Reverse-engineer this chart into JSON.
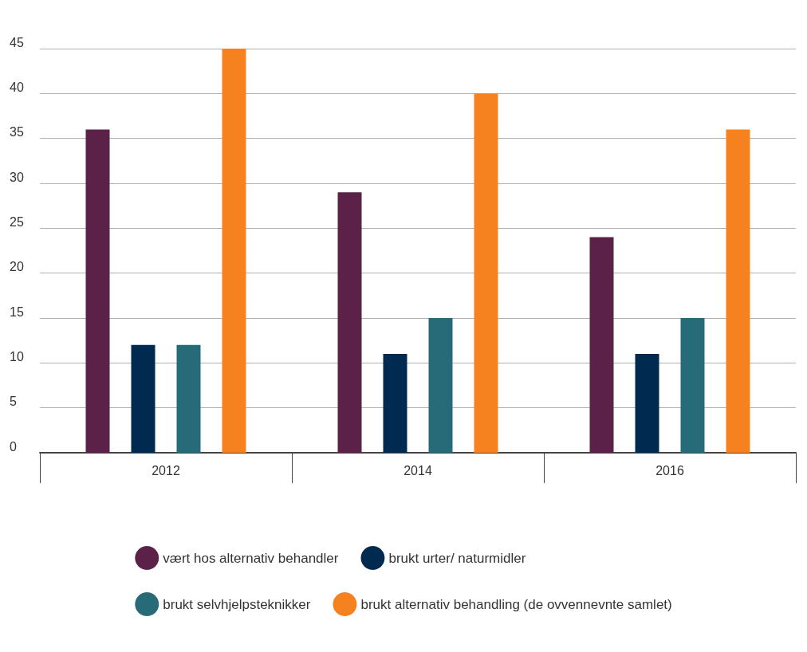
{
  "chart_data": {
    "type": "bar",
    "categories": [
      "2012",
      "2014",
      "2016"
    ],
    "series": [
      {
        "name": "vært hos alternativ behandler",
        "color": "#5c2148",
        "values": [
          36,
          29,
          24
        ]
      },
      {
        "name": "brukt urter/ naturmidler",
        "color": "#002a4f",
        "values": [
          12,
          11,
          11
        ]
      },
      {
        "name": "brukt selvhjelpsteknikker",
        "color": "#266b77",
        "values": [
          12,
          15,
          15
        ]
      },
      {
        "name": "brukt alternativ behandling (de ovvennevnte samlet)",
        "color": "#f5821f",
        "values": [
          45,
          40,
          36
        ]
      }
    ],
    "ylim": [
      0,
      45
    ],
    "yticks": [
      0,
      5,
      10,
      15,
      20,
      25,
      30,
      35,
      40,
      45
    ],
    "grid": "y",
    "legend": "bottom"
  }
}
